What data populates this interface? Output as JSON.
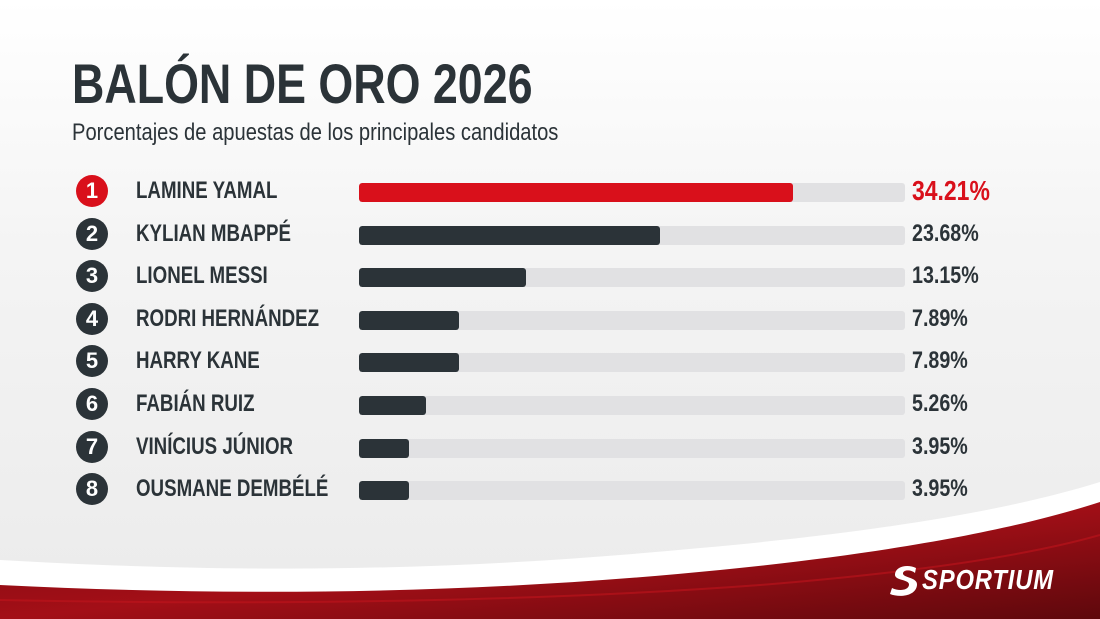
{
  "header": {
    "title": "BALÓN DE ORO 2026",
    "subtitle": "Porcentajes de apuestas de los principales candidatos"
  },
  "colors": {
    "leader": "#d9101b",
    "bar": "#2b3338",
    "track": "#e1e1e3",
    "text": "#2b3338"
  },
  "chart_data": {
    "type": "bar",
    "orientation": "horizontal",
    "title": "BALÓN DE ORO 2026",
    "subtitle": "Porcentajes de apuestas de los principales candidatos",
    "xlim": [
      0,
      43
    ],
    "grid": false,
    "legend": "none",
    "ranks": [
      "1",
      "2",
      "3",
      "4",
      "5",
      "6",
      "7",
      "8"
    ],
    "categories": [
      "LAMINE YAMAL",
      "KYLIAN MBAPPÉ",
      "LIONEL MESSI",
      "RODRI HERNÁNDEZ",
      "HARRY KANE",
      "FABIÁN RUIZ",
      "VINÍCIUS JÚNIOR",
      "OUSMANE DEMBÉLÉ"
    ],
    "values": [
      34.21,
      23.68,
      13.15,
      7.89,
      7.89,
      5.26,
      3.95,
      3.95
    ],
    "value_labels": [
      "34.21%",
      "23.68%",
      "13.15%",
      "7.89%",
      "7.89%",
      "5.26%",
      "3.95%",
      "3.95%"
    ]
  },
  "brand": {
    "name": "SPORTIUM",
    "icon": "sportium-s-logo"
  }
}
